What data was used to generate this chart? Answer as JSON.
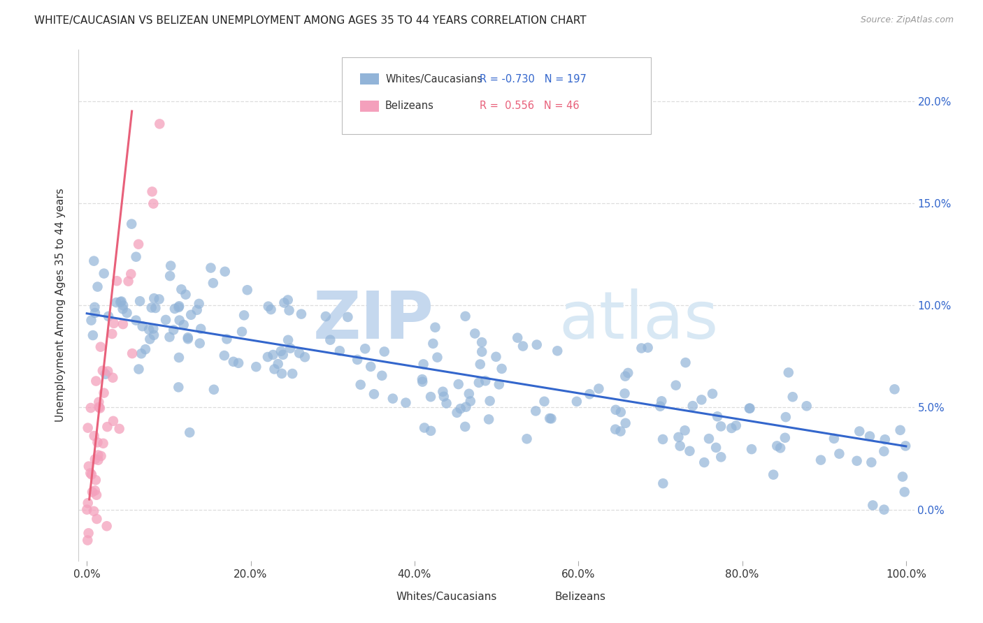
{
  "title": "WHITE/CAUCASIAN VS BELIZEAN UNEMPLOYMENT AMONG AGES 35 TO 44 YEARS CORRELATION CHART",
  "source": "Source: ZipAtlas.com",
  "ylabel": "Unemployment Among Ages 35 to 44 years",
  "blue_R": -0.73,
  "blue_N": 197,
  "pink_R": 0.556,
  "pink_N": 46,
  "blue_color": "#92B4D8",
  "pink_color": "#F4A0BC",
  "blue_line_color": "#3366CC",
  "pink_line_color": "#E8607A",
  "watermark_zip": "ZIP",
  "watermark_atlas": "atlas",
  "watermark_color": "#C8D8EC",
  "legend_label_blue": "Whites/Caucasians",
  "legend_label_pink": "Belizeans",
  "blue_trendline_x0": 0.0,
  "blue_trendline_x1": 1.0,
  "blue_trendline_y0": 0.096,
  "blue_trendline_y1": 0.031,
  "pink_trendline_x0": 0.003,
  "pink_trendline_x1": 0.055,
  "pink_trendline_y0": 0.005,
  "pink_trendline_y1": 0.195,
  "xlim": [
    -0.01,
    1.01
  ],
  "ylim": [
    -0.025,
    0.225
  ],
  "ytick_vals": [
    0.0,
    0.05,
    0.1,
    0.15,
    0.2
  ],
  "ytick_labels": [
    "0.0%",
    "5.0%",
    "10.0%",
    "15.0%",
    "20.0%"
  ],
  "xtick_vals": [
    0.0,
    0.2,
    0.4,
    0.6,
    0.8,
    1.0
  ],
  "xtick_labels": [
    "0.0%",
    "20.0%",
    "40.0%",
    "60.0%",
    "80.0%",
    "100.0%"
  ],
  "grid_color": "#DDDDDD",
  "background_color": "#FFFFFF",
  "blue_seed": 77,
  "pink_seed": 33
}
